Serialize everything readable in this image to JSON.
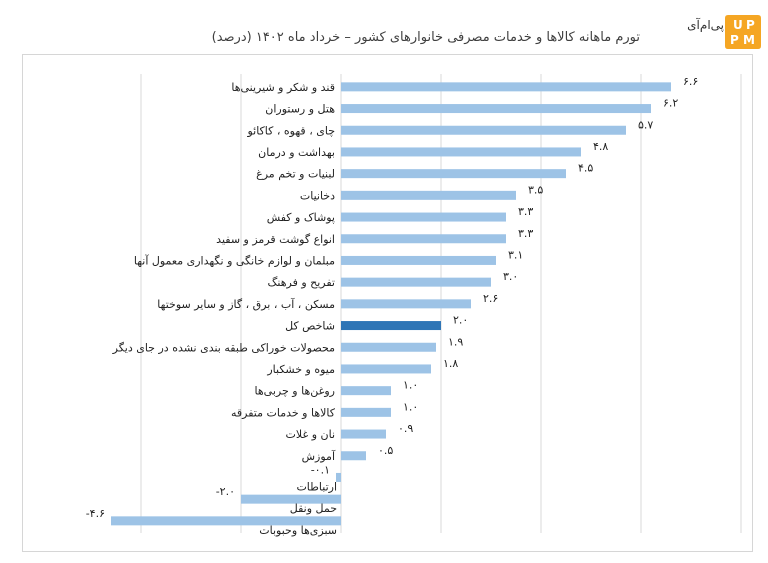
{
  "title": "تورم ماهانه کالاها و خدمات مصرفی خانوارهای کشور – خرداد ماه ۱۴۰۲ (درصد)",
  "logo": {
    "text": "پی‌ام‌آی",
    "badge_letters": [
      "U",
      "P",
      "P",
      "M"
    ],
    "badge_color": "#f5a623"
  },
  "colors": {
    "bar": "#9dc3e6",
    "highlight": "#2e75b6"
  },
  "chart_data": {
    "type": "bar",
    "orientation": "horizontal",
    "title": "تورم ماهانه کالاها و خدمات مصرفی خانوارهای کشور – خرداد ماه ۱۴۰۲ (درصد)",
    "highlight_category": "شاخص کل",
    "categories": [
      "قند و شکر و شیرینی‌ها",
      "هتل و رستوران",
      "چای ، قهوه ، کاکائو",
      "بهداشت و درمان",
      "لبنیات و تخم مرغ",
      "دخانیات",
      "پوشاک و کفش",
      "انواع گوشت قرمز و سفید",
      "مبلمان و لوازم خانگی و نگهداری معمول آنها",
      "تفریح و فرهنگ",
      "مسکن ، آب ، برق ، گاز و سایر سوختها",
      "شاخص کل",
      "محصولات خوراکی طبقه بندی نشده در جای دیگر",
      "میوه و خشکبار",
      "روغن‌ها و چربی‌ها",
      "کالاها و خدمات متفرقه",
      "نان و غلات",
      "آموزش",
      "ارتباطات",
      "حمل ونقل",
      "سبزی‌ها وحبوبات"
    ],
    "values": [
      6.6,
      6.2,
      5.7,
      4.8,
      4.5,
      3.5,
      3.3,
      3.3,
      3.1,
      3.0,
      2.6,
      2.0,
      1.9,
      1.8,
      1.0,
      1.0,
      0.9,
      0.5,
      -0.1,
      -2.0,
      -4.6
    ],
    "value_labels": [
      "۶.۶",
      "۶.۲",
      "۵.۷",
      "۴.۸",
      "۴.۵",
      "۳.۵",
      "۳.۳",
      "۳.۳",
      "۳.۱",
      "۳.۰",
      "۲.۶",
      "۲.۰",
      "۱.۹",
      "۱.۸",
      "۱.۰",
      "۱.۰",
      "۰.۹",
      "۰.۵",
      "-۰.۱",
      "-۲.۰",
      "-۴.۶"
    ],
    "grid": true,
    "legend": "none"
  }
}
